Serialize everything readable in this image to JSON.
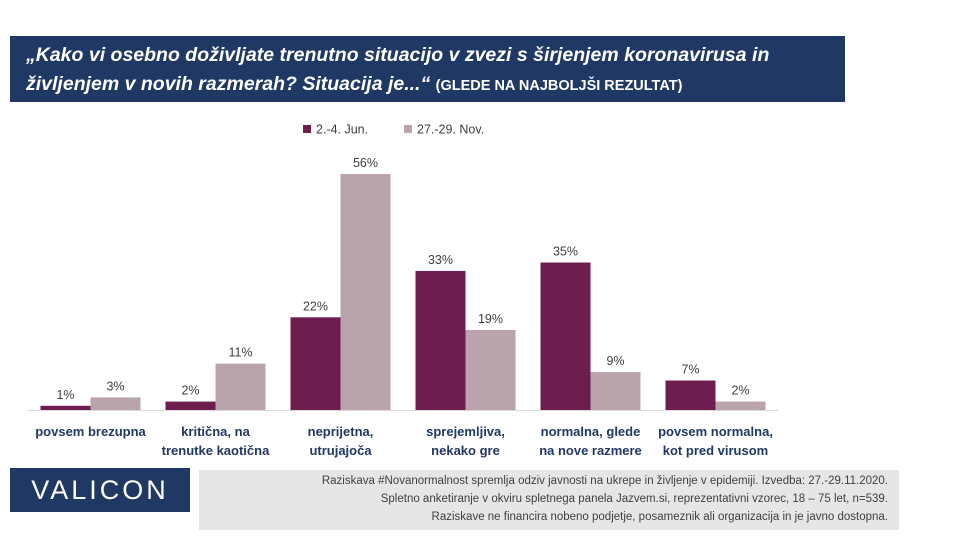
{
  "title": {
    "line1": "„Kako vi osebno doživljate trenutno situacijo v zvezi s širjenjem koronavirusa in",
    "line2": "življenjem v novih razmerah? Situacija je...“",
    "suffix": "(GLEDE NA NAJBOLJŠI REZULTAT)"
  },
  "chart_data": {
    "type": "bar",
    "categories": [
      [
        "povsem brezupna"
      ],
      [
        "kritična, na",
        "trenutke kaotična"
      ],
      [
        "neprijetna,",
        "utrujajoča"
      ],
      [
        "sprejemljiva,",
        "nekako gre"
      ],
      [
        "normalna, glede",
        "na nove razmere"
      ],
      [
        "povsem normalna,",
        "kot pred virusom"
      ]
    ],
    "series": [
      {
        "name": "2.-4. Jun.",
        "values": [
          1,
          2,
          22,
          33,
          35,
          7
        ],
        "color": "#6d1e4e"
      },
      {
        "name": "27.-29. Nov.",
        "values": [
          3,
          11,
          56,
          19,
          9,
          2
        ],
        "color": "#b9a4ab"
      }
    ],
    "value_suffix": "%",
    "ylim": [
      0,
      56
    ],
    "legend_position": "top",
    "grid": false
  },
  "logo": {
    "text": "VALICON"
  },
  "footnote": {
    "line1": "Raziskava #Novanormalnost spremlja odziv javnosti na ukrepe in življenje v epidemiji. Izvedba: 27.-29.11.2020.",
    "line2": "Spletno anketiranje v okviru spletnega panela Jazvem.si, reprezentativni vzorec, 18 – 75 let, n=539.",
    "line3": "Raziskave ne financira nobeno podjetje, posameznik ali organizacija in je javno dostopna."
  }
}
